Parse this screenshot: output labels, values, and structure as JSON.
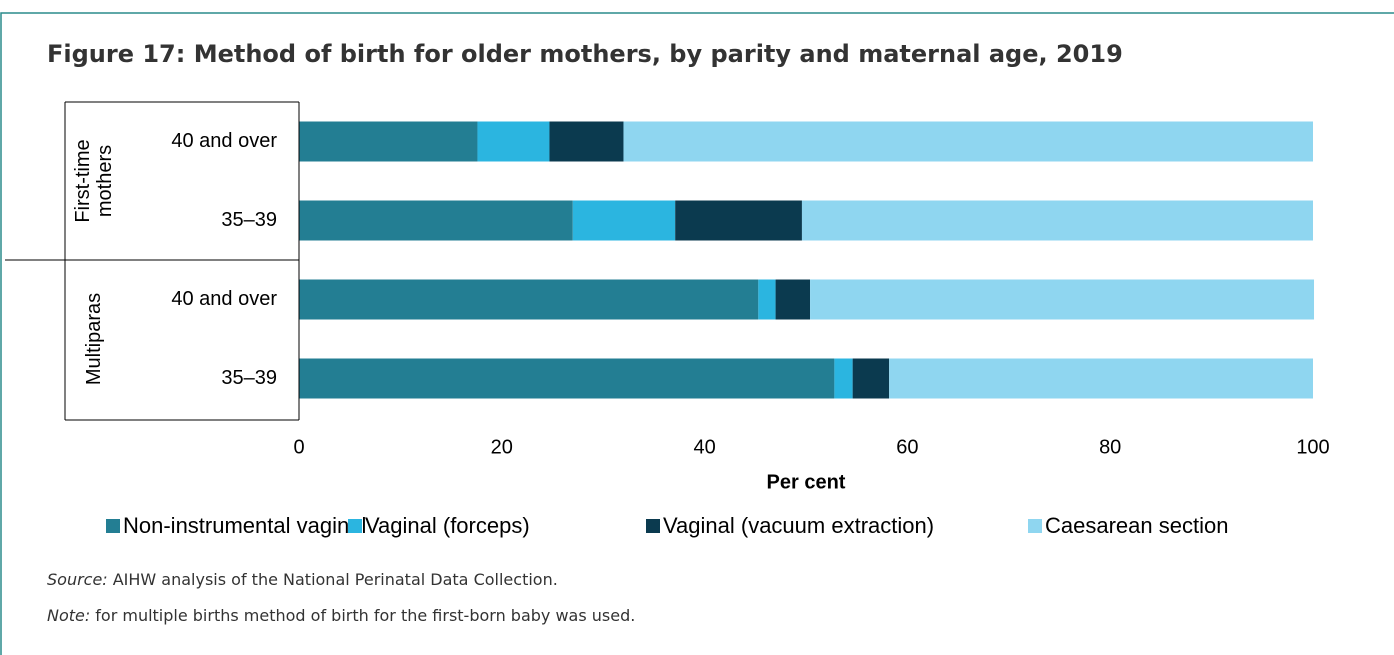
{
  "chart_data": {
    "type": "stacked_barh",
    "title": "Figure 17: Method of birth for older mothers, by parity and maternal age, 2019",
    "x_label": "Per cent",
    "groups": [
      {
        "label": [
          "First-time",
          "mothers"
        ],
        "categories": [
          "40 and over",
          "35–39"
        ]
      },
      {
        "label": [
          "Multiparas"
        ],
        "categories": [
          "40 and over",
          "35–39"
        ]
      }
    ],
    "series": [
      {
        "name": "Non-instrumental vaginal",
        "color": "#237e93",
        "values": [
          17.6,
          27.0,
          45.3,
          52.8
        ]
      },
      {
        "name": "Vaginal (forceps)",
        "color": "#2bb5e0",
        "values": [
          7.1,
          10.1,
          1.7,
          1.8
        ]
      },
      {
        "name": "Vaginal (vacuum extraction)",
        "color": "#0b3a4f",
        "values": [
          7.3,
          12.5,
          3.4,
          3.6
        ]
      },
      {
        "name": "Caesarean section",
        "color": "#8fd6f0",
        "values": [
          68.0,
          50.4,
          49.7,
          41.8
        ]
      }
    ],
    "xlim": [
      0,
      100
    ],
    "xticks": [
      0,
      20,
      40,
      60,
      80,
      100
    ],
    "legend": "bottom",
    "source": {
      "label": "Source:",
      "text": "AIHW analysis of the National Perinatal Data Collection."
    },
    "note": {
      "label": "Note:",
      "text": "for multiple births method of birth for the first-born baby was used."
    }
  }
}
